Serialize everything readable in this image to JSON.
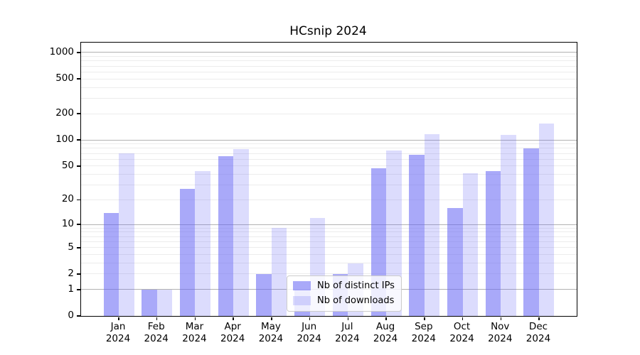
{
  "chart_data": {
    "type": "bar",
    "title": "HCsnip 2024",
    "x_months": [
      "Jan",
      "Feb",
      "Mar",
      "Apr",
      "May",
      "Jun",
      "Jul",
      "Aug",
      "Sep",
      "Oct",
      "Nov",
      "Dec"
    ],
    "x_year": "2024",
    "categories": [
      "Jan 2024",
      "Feb 2024",
      "Mar 2024",
      "Apr 2024",
      "May 2024",
      "Jun 2024",
      "Jul 2024",
      "Aug 2024",
      "Sep 2024",
      "Oct 2024",
      "Nov 2024",
      "Dec 2024"
    ],
    "series": [
      {
        "key": "distinct-ips",
        "name": "Nb of distinct IPs",
        "color": "rgba(102,102,245,0.56)",
        "values": [
          14,
          1,
          27,
          65,
          2,
          1,
          2,
          47,
          68,
          16,
          44,
          80
        ]
      },
      {
        "key": "downloads",
        "name": "Nb of downloads",
        "color": "rgba(102,102,245,0.23)",
        "values": [
          70,
          1,
          44,
          78,
          9,
          12,
          3,
          75,
          117,
          41,
          115,
          155
        ]
      }
    ],
    "yscale": "log1p",
    "ylim": [
      0,
      1300
    ],
    "y_ticks": [
      0,
      1,
      2,
      5,
      10,
      20,
      50,
      100,
      200,
      500,
      1000
    ],
    "y_major_gridlines": [
      1,
      10,
      100,
      1000
    ],
    "y_minor_gridlines": [
      2,
      3,
      4,
      5,
      6,
      7,
      8,
      9,
      20,
      30,
      40,
      50,
      60,
      70,
      80,
      90,
      200,
      300,
      400,
      500,
      600,
      700,
      800,
      900
    ],
    "legend": {
      "position": "lower-center"
    },
    "colors": {
      "major_grid": "#b2b2b2",
      "minor_grid": "#ececec",
      "axis": "#000000",
      "background": "#ffffff"
    }
  }
}
